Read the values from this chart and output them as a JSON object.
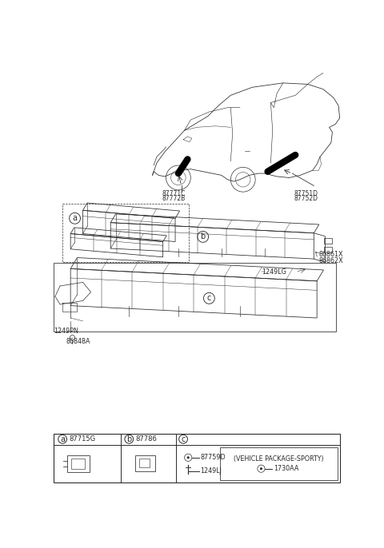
{
  "bg_color": "#ffffff",
  "line_color": "#2a2a2a",
  "fig_width": 4.8,
  "fig_height": 6.86,
  "dpi": 100,
  "car_label_left": [
    "87771C",
    "87772B"
  ],
  "car_label_right": [
    "87751D",
    "87752D"
  ],
  "part_a_label": "87715G",
  "part_b_label": "87786",
  "label_86861X": "86861X",
  "label_86862X": "86862X",
  "label_1249LG": "1249LG",
  "label_1249PN": "1249PN",
  "label_86848A": "86848A",
  "label_87759D": "87759D",
  "label_1249LJ": "1249LJ",
  "label_1730AA": "1730AA",
  "label_vehicle_pkg": "(VEHICLE PACKAGE-SPORTY)"
}
